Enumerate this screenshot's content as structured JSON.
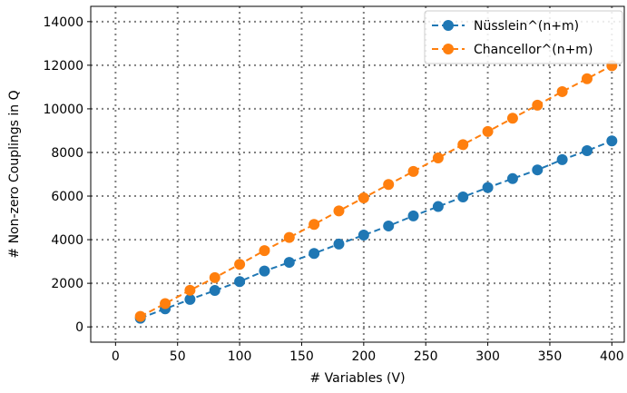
{
  "chart_data": {
    "type": "line",
    "title": "",
    "xlabel": "# Variables (V)",
    "ylabel": "# Non-zero Couplings in Q",
    "xlim": [
      -20,
      410
    ],
    "ylim": [
      -700,
      14700
    ],
    "xticks": [
      0,
      50,
      100,
      150,
      200,
      250,
      300,
      350,
      400
    ],
    "yticks": [
      0,
      2000,
      4000,
      6000,
      8000,
      10000,
      12000,
      14000
    ],
    "grid": true,
    "grid_style": "dotted",
    "legend_position": "top-right",
    "x": [
      20,
      40,
      60,
      80,
      100,
      120,
      140,
      160,
      180,
      200,
      220,
      240,
      260,
      280,
      300,
      320,
      340,
      360,
      380,
      400
    ],
    "series": [
      {
        "name": "Nüsslein^(n+m)",
        "color": "#1f77b4",
        "line_style": "dashed",
        "marker": "circle",
        "values": [
          400,
          830,
          1260,
          1670,
          2080,
          2560,
          2960,
          3370,
          3800,
          4210,
          4630,
          5090,
          5520,
          5960,
          6390,
          6800,
          7200,
          7670,
          8080,
          8530
        ]
      },
      {
        "name": "Chancellor^(n+m)",
        "color": "#ff7f0e",
        "line_style": "dashed",
        "marker": "circle",
        "values": [
          480,
          1070,
          1680,
          2260,
          2870,
          3500,
          4100,
          4700,
          5320,
          5920,
          6530,
          7130,
          7750,
          8360,
          8960,
          9570,
          10170,
          10790,
          11380,
          11980
        ]
      }
    ]
  }
}
